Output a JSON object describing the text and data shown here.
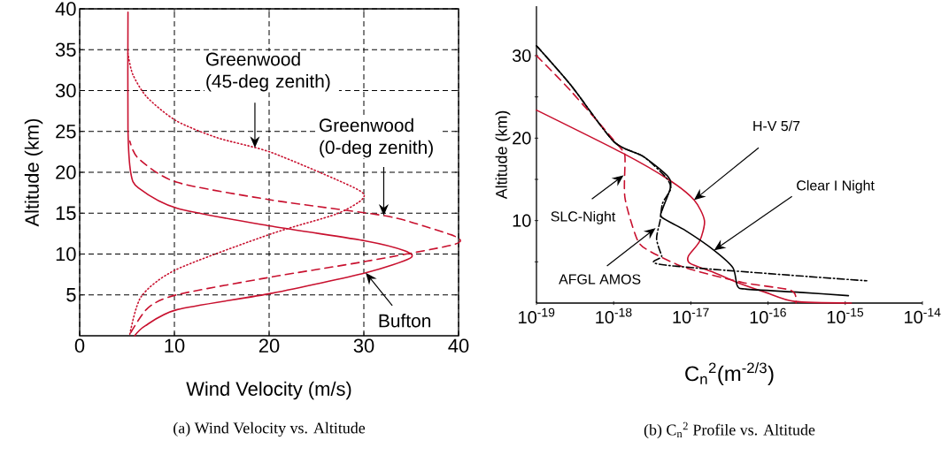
{
  "chart_data": [
    {
      "type": "line",
      "title": "(a) Wind Velocity vs. Altitude",
      "xlabel": "Wind Velocity (m/s)",
      "ylabel": "Altitude (km)",
      "xlim": [
        0,
        40
      ],
      "ylim": [
        0,
        40
      ],
      "xticks": [
        0,
        10,
        20,
        30,
        40
      ],
      "yticks": [
        5,
        10,
        15,
        20,
        25,
        30,
        35,
        40
      ],
      "grid": true,
      "series": [
        {
          "color": "#c8102e",
          "line_style": "solid",
          "x": [
            5.8,
            6.9,
            10.3,
            20.3,
            30.2,
            34.9,
            34.3,
            30.2,
            20.3,
            10.3,
            6.2,
            5.4,
            5.1,
            5.1
          ],
          "values": [
            0,
            1.2,
            3.2,
            5.2,
            7.7,
            9.5,
            10.4,
            11.6,
            13.4,
            15.6,
            18.1,
            19.9,
            25.3,
            39.6
          ]
        },
        {
          "color": "#c8102e",
          "line_style": "dashed",
          "x": [
            5.4,
            7.2,
            10.2,
            20.3,
            30.2,
            39.3,
            39.9,
            36.4,
            32.1,
            20.3,
            10.2,
            6.2,
            5.3
          ],
          "values": [
            0.4,
            3.4,
            5.0,
            7.2,
            9.1,
            11.1,
            12.0,
            13.4,
            14.7,
            16.6,
            18.8,
            21.7,
            23.8
          ]
        },
        {
          "color": "#c8102e",
          "line_style": "dotted",
          "x": [
            5.3,
            6.5,
            10.2,
            20.3,
            27.1,
            29.9,
            29.0,
            20.3,
            14.6,
            10.2,
            7.1,
            5.6,
            5.1
          ],
          "values": [
            0.2,
            4.8,
            8.1,
            12.5,
            14.9,
            16.8,
            18.1,
            22.4,
            24.2,
            26.3,
            29.2,
            32.0,
            34.5
          ]
        }
      ],
      "annotations": [
        {
          "text": "Greenwood (45-deg zenith)",
          "x": 18.5,
          "y": 23
        },
        {
          "text": "Greenwood (0-deg zenith)",
          "x": 32.1,
          "y": 14.7
        },
        {
          "text": "Bufton",
          "x": 30.2,
          "y": 7.7
        }
      ]
    },
    {
      "type": "line",
      "title": "(b) C$_{n}$$^{2}$ Profile vs. Altitude",
      "xlabel": "C$_{n}$$^{2}$(m$^{-2/3}$)",
      "ylabel": "Altitude (km)",
      "log": "x",
      "xlim": [
        1e-19,
        1e-14
      ],
      "ylim": [
        0,
        36
      ],
      "xticks": [
        {
          "value": 1e-19,
          "label": "10$^{-19}$"
        },
        {
          "value": 1e-18,
          "label": "10$^{-18}$"
        },
        {
          "value": 1e-17,
          "label": "10$^{-17}$"
        },
        {
          "value": 1e-16,
          "label": "10$^{-16}$"
        },
        {
          "value": 1e-15,
          "label": "10$^{-15}$"
        },
        {
          "value": 1e-14,
          "label": "10$^{-14}$"
        }
      ],
      "yticks": [
        {
          "value": 5,
          "label": null
        },
        10,
        {
          "value": 15,
          "label": null
        },
        20,
        {
          "value": 25,
          "label": null
        },
        30
      ],
      "series": [
        {
          "color": "#c8102e",
          "line_style": "solid",
          "x": [
            1e-19,
            1.3e-18,
            5.1e-18,
            1.1e-17,
            1.5e-17,
            1.3e-17,
            9.3e-18,
            9.8e-18,
            2e-17,
            4e-17,
            9.3e-17,
            2.2e-16,
            1.2e-15
          ],
          "values": [
            23.4,
            18.2,
            15.0,
            12.5,
            10.0,
            7.5,
            5.7,
            4.8,
            3.7,
            2.5,
            1.3,
            0.2,
            0
          ]
        },
        {
          "color": "#000000",
          "line_style": "solid",
          "x": [
            1e-19,
            2.8e-19,
            1e-18,
            2.4e-18,
            5.1e-18,
            5.4e-18,
            4.3e-18,
            4.2e-18,
            8.5e-18,
            2e-17,
            3.5e-17,
            4e-17,
            5.1e-17,
            2.6e-16,
            1.1e-15
          ],
          "values": [
            31.2,
            26.4,
            19.6,
            17.8,
            15.3,
            13.9,
            11.4,
            10.4,
            8.8,
            6.4,
            4.3,
            2.1,
            1.7,
            1.3,
            0.9
          ]
        },
        {
          "color": "#c8102e",
          "line_style": "dashed",
          "x": [
            1e-19,
            2.8e-19,
            1.2e-18,
            1.4e-18,
            1.4e-18,
            2e-18,
            2.8e-18,
            8.5e-18,
            4.7e-17,
            1.9e-16,
            2.3e-16,
            2.3e-16
          ],
          "values": [
            30,
            25.7,
            18.9,
            17.8,
            12.8,
            7.8,
            6.4,
            4.3,
            2.5,
            1.6,
            0.7,
            0
          ]
        },
        {
          "color": "#000000",
          "line_style": "dashdot",
          "x": [
            1e-19,
            2.8e-19,
            1e-18,
            2.4e-18,
            4.7e-18,
            5.5e-18,
            4.3e-18,
            4e-18,
            3.6e-18,
            4.2e-18,
            4.7e-18,
            1.9e-15
          ],
          "values": [
            31.2,
            26.4,
            19.6,
            17.8,
            15.3,
            13.9,
            12.1,
            10.0,
            7.8,
            5.7,
            4.6,
            2.7
          ]
        }
      ],
      "annotations": [
        {
          "text": "H-V 5/7",
          "x": 1.1e-17,
          "y": 12.5
        },
        {
          "text": "Clear I Night",
          "x": 2e-17,
          "y": 6.4
        },
        {
          "text": "SLC-Night",
          "x": 1.35e-18,
          "y": 15.5
        },
        {
          "text": "AFGL AMOS",
          "x": 3.5e-18,
          "y": 9.1
        }
      ]
    }
  ]
}
